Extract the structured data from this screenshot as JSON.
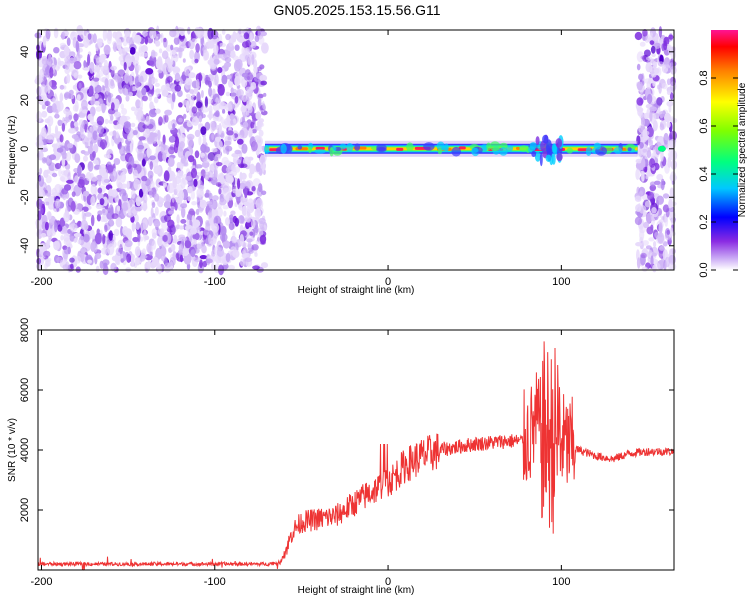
{
  "title": "GN05.2025.153.15.56.G11",
  "chart_data": [
    {
      "type": "heatmap",
      "name": "spectrogram",
      "xlabel": "Height of straight line (km)",
      "ylabel": "Frequency (Hz)",
      "xlim": [
        -202,
        165
      ],
      "ylim": [
        -50,
        49
      ],
      "x_ticks": [
        -200,
        -100,
        0,
        100
      ],
      "y_ticks": [
        -40,
        -20,
        0,
        20,
        40
      ],
      "colorbar": {
        "label": "Normalized spectral amplitude",
        "range": [
          0,
          1
        ],
        "ticks": [
          0.0,
          0.2,
          0.4,
          0.6,
          0.8
        ]
      },
      "regions": {
        "noise_left_x": [
          -202,
          -71
        ],
        "signal_line_x": [
          -71,
          144
        ],
        "noise_right_x": [
          144,
          165
        ],
        "signal_frequency": 0
      },
      "grid": false
    },
    {
      "type": "line",
      "name": "snr",
      "xlabel": "Height of straight line (km)",
      "ylabel": "SNR (10 * v/v)",
      "xlim": [
        -202,
        165
      ],
      "ylim": [
        0,
        8000
      ],
      "x_ticks": [
        -200,
        -100,
        0,
        100
      ],
      "y_ticks": [
        2000,
        4000,
        6000,
        8000
      ],
      "color": "#ee3333",
      "series": [
        {
          "x": [
            -200,
            -180,
            -160,
            -140,
            -120,
            -100,
            -80,
            -70,
            -62,
            -58,
            -55,
            -50,
            -40,
            -30,
            -20,
            -10,
            0,
            10,
            20,
            30,
            40,
            50,
            60,
            70,
            78,
            82,
            86,
            90,
            94,
            98,
            102,
            106,
            110,
            120,
            130,
            140,
            150,
            160,
            165
          ],
          "values": [
            200,
            200,
            200,
            200,
            200,
            200,
            200,
            200,
            250,
            800,
            1300,
            1600,
            1700,
            1800,
            2200,
            2600,
            2900,
            3500,
            3800,
            4000,
            4100,
            4200,
            4250,
            4300,
            4300,
            4500,
            5000,
            4500,
            4300,
            4500,
            4200,
            4100,
            4000,
            3800,
            3700,
            3900,
            3950,
            3950,
            3950
          ]
        }
      ],
      "grid": false
    }
  ]
}
